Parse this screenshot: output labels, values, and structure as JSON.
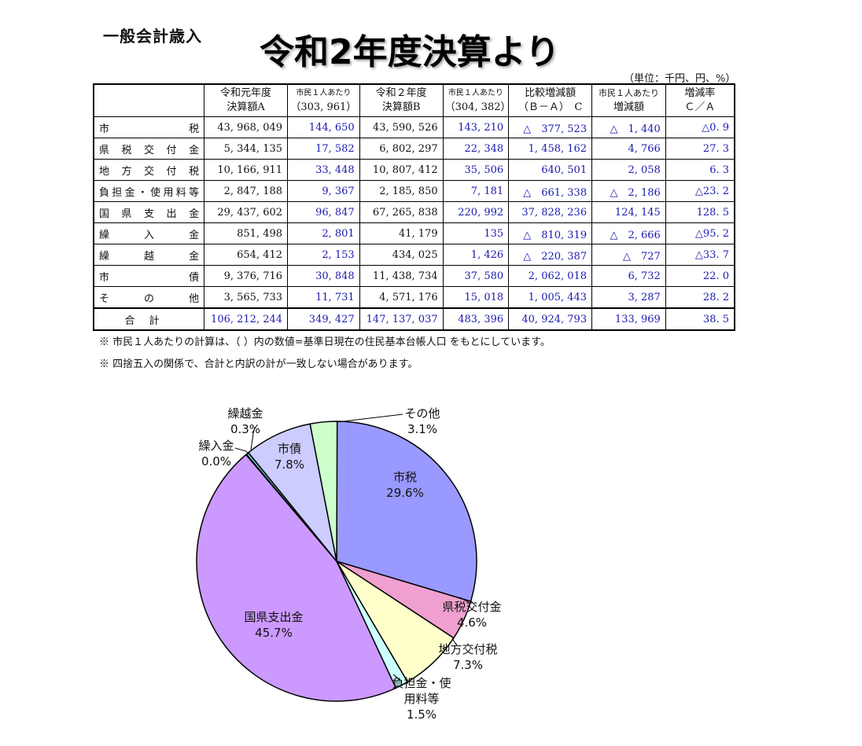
{
  "header": {
    "section_label": "一般会計歳入",
    "title": "令和2年度決算より",
    "unit_note": "（単位：千円、円、%）"
  },
  "table": {
    "headers": [
      {
        "l1": "",
        "l2": ""
      },
      {
        "l1": "令和元年度",
        "l2": "決算額A"
      },
      {
        "l1": "市民１人あたり",
        "l2": "（303, 961）"
      },
      {
        "l1": "令和２年度",
        "l2": "決算額B"
      },
      {
        "l1": "市民１人あたり",
        "l2": "（304, 382）"
      },
      {
        "l1": "比較増減額",
        "l2": "（Ｂ－Ａ）　C"
      },
      {
        "l1": "市民１人あたり",
        "l2": "増減額"
      },
      {
        "l1": "増減率",
        "l2": "Ｃ／Ａ"
      }
    ],
    "rows": [
      {
        "label": "市税",
        "a": "43, 968, 049",
        "pa": "144, 650",
        "b": "43, 590, 526",
        "pb": "143, 210",
        "c": "△　377, 523",
        "pc": "△　1, 440",
        "r": "△0. 9"
      },
      {
        "label": "県税交付金",
        "a": "5, 344, 135",
        "pa": "17, 582",
        "b": "6, 802, 297",
        "pb": "22, 348",
        "c": "1, 458, 162",
        "pc": "4, 766",
        "r": "27. 3"
      },
      {
        "label": "地方交付税",
        "a": "10, 166, 911",
        "pa": "33, 448",
        "b": "10, 807, 412",
        "pb": "35, 506",
        "c": "640, 501",
        "pc": "2, 058",
        "r": "6. 3"
      },
      {
        "label": "負担金・使用料等",
        "a": "2, 847, 188",
        "pa": "9, 367",
        "b": "2, 185, 850",
        "pb": "7, 181",
        "c": "△　661, 338",
        "pc": "△　2, 186",
        "r": "△23. 2"
      },
      {
        "label": "国県支出金",
        "a": "29, 437, 602",
        "pa": "96, 847",
        "b": "67, 265, 838",
        "pb": "220, 992",
        "c": "37, 828, 236",
        "pc": "124, 145",
        "r": "128. 5"
      },
      {
        "label": "繰入金",
        "a": "851, 498",
        "pa": "2, 801",
        "b": "41, 179",
        "pb": "135",
        "c": "△　810, 319",
        "pc": "△　2, 666",
        "r": "△95. 2"
      },
      {
        "label": "繰越金",
        "a": "654, 412",
        "pa": "2, 153",
        "b": "434, 025",
        "pb": "1, 426",
        "c": "△　220, 387",
        "pc": "△　727",
        "r": "△33. 7"
      },
      {
        "label": "市債",
        "a": "9, 376, 716",
        "pa": "30, 848",
        "b": "11, 438, 734",
        "pb": "37, 580",
        "c": "2, 062, 018",
        "pc": "6, 732",
        "r": "22. 0"
      },
      {
        "label": "その他",
        "a": "3, 565, 733",
        "pa": "11, 731",
        "b": "4, 571, 176",
        "pb": "15, 018",
        "c": "1, 005, 443",
        "pc": "3, 287",
        "r": "28. 2"
      }
    ],
    "total": {
      "label": "合計",
      "a": "106, 212, 244",
      "pa": "349, 427",
      "b": "147, 137, 037",
      "pb": "483, 396",
      "c": "40, 924, 793",
      "pc": "133, 969",
      "r": "38. 5"
    }
  },
  "notes": [
    "※ 市民１人あたりの計算は、（ ）内の数値=基準日現在の住民基本台帳人口 をもとにしています。",
    "※ 四捨五入の関係で、合計と内訳の計が一致しない場合があります。"
  ],
  "colors": {
    "number_blue": "#1a1ab0"
  },
  "chart_data": {
    "type": "pie",
    "slices": [
      {
        "label": "市税",
        "value": 29.6,
        "pct_label": "29.6%",
        "color": "#9999ff"
      },
      {
        "label": "県税交付金",
        "value": 4.6,
        "pct_label": "4.6%",
        "color": "#f0a0d0"
      },
      {
        "label": "地方交付税",
        "value": 7.3,
        "pct_label": "7.3%",
        "color": "#ffffcc"
      },
      {
        "label": "負担金・使用料等",
        "value": 1.5,
        "pct_label": "1.5%",
        "color": "#ccffff"
      },
      {
        "label": "国県支出金",
        "value": 45.7,
        "pct_label": "45.7%",
        "color": "#cc99ff"
      },
      {
        "label": "繰入金",
        "value": 0.0,
        "pct_label": "0.0%",
        "color": "#99ccff"
      },
      {
        "label": "繰越金",
        "value": 0.3,
        "pct_label": "0.3%",
        "color": "#66cccc"
      },
      {
        "label": "市債",
        "value": 7.8,
        "pct_label": "7.8%",
        "color": "#ccccff"
      },
      {
        "label": "その他",
        "value": 3.1,
        "pct_label": "3.1%",
        "color": "#ccffcc"
      }
    ]
  }
}
